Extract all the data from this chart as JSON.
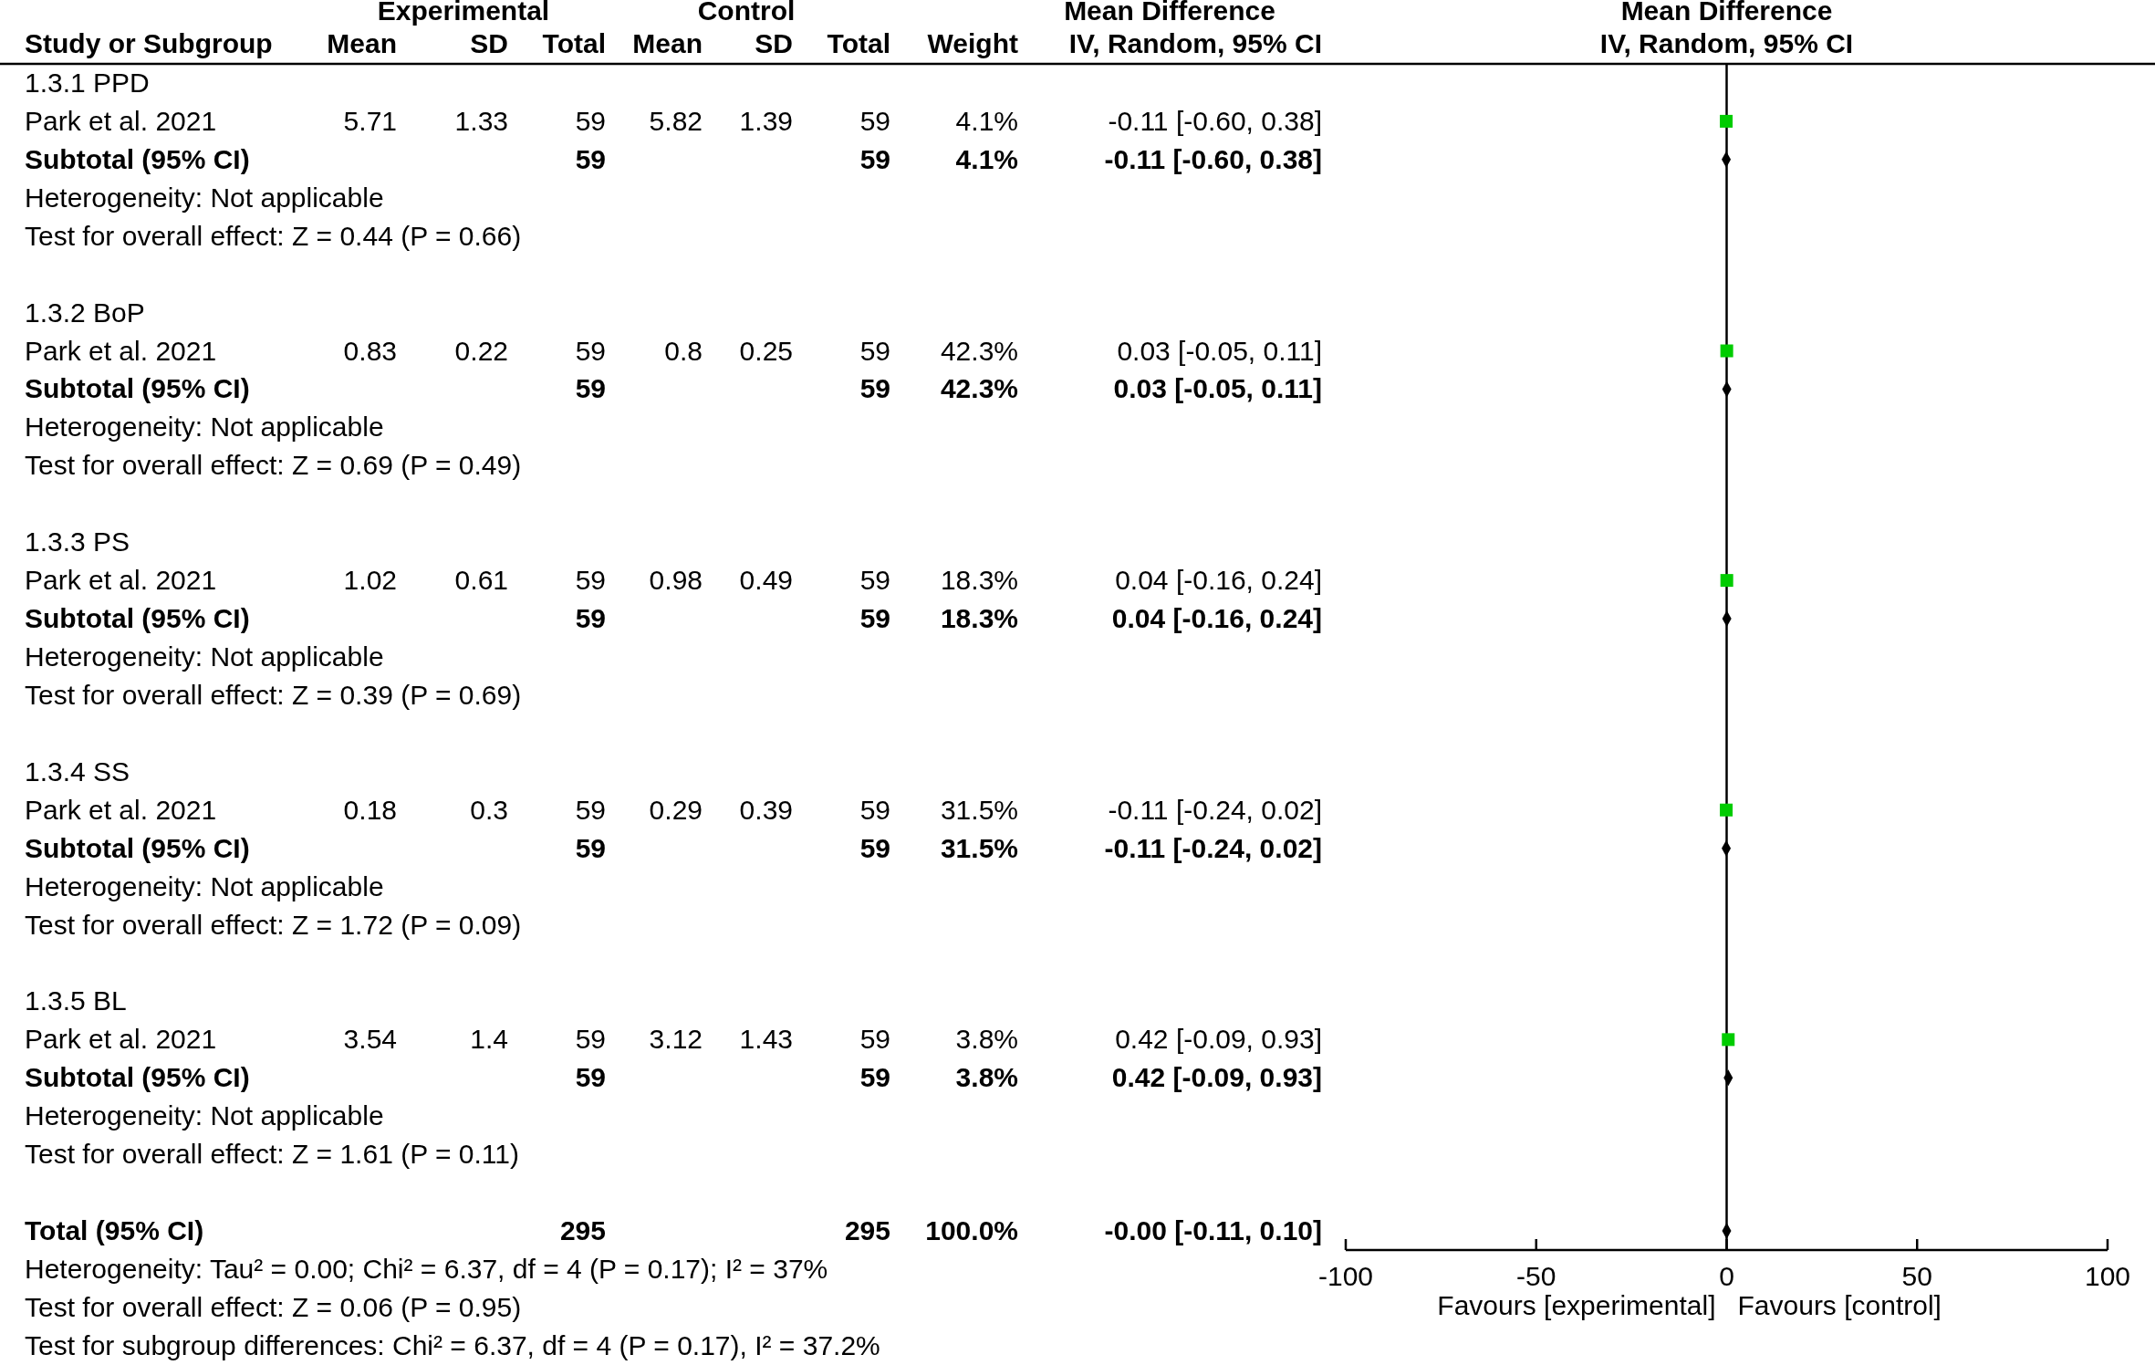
{
  "chart_data": [
    {
      "type": "other",
      "categories": [
        "Study or Subgroup",
        "Mean",
        "SD",
        "Total",
        "Mean",
        "SD",
        "Total",
        "Weight",
        "IV, Random, 95% CI"
      ],
      "cell_labels": [
        [
          null,
          null,
          "Experimental",
          null,
          null,
          "Control",
          null,
          null,
          "Mean Difference"
        ],
        [
          "1.3.1 PPD",
          null,
          null,
          null,
          null,
          null,
          null,
          null,
          null
        ],
        [
          "Park et al. 2021",
          "5.71",
          "1.33",
          "59",
          "5.82",
          "1.39",
          "59",
          "4.1%",
          "-0.11 [-0.60, 0.38]"
        ],
        [
          "Subtotal (95% CI)",
          null,
          null,
          "59",
          null,
          null,
          "59",
          "4.1%",
          "-0.11 [-0.60, 0.38]"
        ],
        [
          "Heterogeneity: Not applicable",
          null,
          null,
          null,
          null,
          null,
          null,
          null,
          null
        ],
        [
          "Test for overall effect: Z = 0.44 (P = 0.66)",
          null,
          null,
          null,
          null,
          null,
          null,
          null,
          null
        ],
        [
          null,
          null,
          null,
          null,
          null,
          null,
          null,
          null,
          null
        ],
        [
          "1.3.2 BoP",
          null,
          null,
          null,
          null,
          null,
          null,
          null,
          null
        ],
        [
          "Park et al. 2021",
          "0.83",
          "0.22",
          "59",
          "0.8",
          "0.25",
          "59",
          "42.3%",
          "0.03 [-0.05, 0.11]"
        ],
        [
          "Subtotal (95% CI)",
          null,
          null,
          "59",
          null,
          null,
          "59",
          "42.3%",
          "0.03 [-0.05, 0.11]"
        ],
        [
          "Heterogeneity: Not applicable",
          null,
          null,
          null,
          null,
          null,
          null,
          null,
          null
        ],
        [
          "Test for overall effect: Z = 0.69 (P = 0.49)",
          null,
          null,
          null,
          null,
          null,
          null,
          null,
          null
        ],
        [
          null,
          null,
          null,
          null,
          null,
          null,
          null,
          null,
          null
        ],
        [
          "1.3.3 PS",
          null,
          null,
          null,
          null,
          null,
          null,
          null,
          null
        ],
        [
          "Park et al. 2021",
          "1.02",
          "0.61",
          "59",
          "0.98",
          "0.49",
          "59",
          "18.3%",
          "0.04 [-0.16, 0.24]"
        ],
        [
          "Subtotal (95% CI)",
          null,
          null,
          "59",
          null,
          null,
          "59",
          "18.3%",
          "0.04 [-0.16, 0.24]"
        ],
        [
          "Heterogeneity: Not applicable",
          null,
          null,
          null,
          null,
          null,
          null,
          null,
          null
        ],
        [
          "Test for overall effect: Z = 0.39 (P = 0.69)",
          null,
          null,
          null,
          null,
          null,
          null,
          null,
          null
        ],
        [
          null,
          null,
          null,
          null,
          null,
          null,
          null,
          null,
          null
        ],
        [
          "1.3.4 SS",
          null,
          null,
          null,
          null,
          null,
          null,
          null,
          null
        ],
        [
          "Park et al. 2021",
          "0.18",
          "0.3",
          "59",
          "0.29",
          "0.39",
          "59",
          "31.5%",
          "-0.11 [-0.24, 0.02]"
        ],
        [
          "Subtotal (95% CI)",
          null,
          null,
          "59",
          null,
          null,
          "59",
          "31.5%",
          "-0.11 [-0.24, 0.02]"
        ],
        [
          "Heterogeneity: Not applicable",
          null,
          null,
          null,
          null,
          null,
          null,
          null,
          null
        ],
        [
          "Test for overall effect: Z = 1.72 (P = 0.09)",
          null,
          null,
          null,
          null,
          null,
          null,
          null,
          null
        ],
        [
          null,
          null,
          null,
          null,
          null,
          null,
          null,
          null,
          null
        ],
        [
          "1.3.5 BL",
          null,
          null,
          null,
          null,
          null,
          null,
          null,
          null
        ],
        [
          "Park et al. 2021",
          "3.54",
          "1.4",
          "59",
          "3.12",
          "1.43",
          "59",
          "3.8%",
          "0.42 [-0.09, 0.93]"
        ],
        [
          "Subtotal (95% CI)",
          null,
          null,
          "59",
          null,
          null,
          "59",
          "3.8%",
          "0.42 [-0.09, 0.93]"
        ],
        [
          "Heterogeneity: Not applicable",
          null,
          null,
          null,
          null,
          null,
          null,
          null,
          null
        ],
        [
          "Test for overall effect: Z = 1.61 (P = 0.11)",
          null,
          null,
          null,
          null,
          null,
          null,
          null,
          null
        ],
        [
          null,
          null,
          null,
          null,
          null,
          null,
          null,
          null,
          null
        ],
        [
          "Total (95% CI)",
          null,
          null,
          "295",
          null,
          null,
          "295",
          "100.0%",
          "-0.00 [-0.11, 0.10]"
        ],
        [
          "Heterogeneity: Tau² = 0.00; Chi² = 6.37, df = 4 (P = 0.17); I² = 37%",
          null,
          null,
          null,
          null,
          null,
          null,
          null,
          null
        ],
        [
          "Test for overall effect: Z = 0.06 (P = 0.95)",
          null,
          null,
          null,
          null,
          null,
          null,
          null,
          null
        ],
        [
          "Test for subgroup differences: Chi² = 6.37, df = 4 (P = 0.17), I² = 37.2%",
          null,
          null,
          null,
          null,
          null,
          null,
          null,
          null
        ]
      ]
    },
    {
      "type": "scatter",
      "orientation": "horizontal",
      "title": "Mean Difference",
      "subtitle": "IV, Random, 95% CI",
      "categories": [
        null,
        null,
        null,
        null,
        null,
        null,
        null,
        null,
        null,
        null,
        null,
        null,
        null,
        null,
        null,
        null,
        null,
        null,
        null,
        null,
        null,
        null,
        null,
        null,
        null,
        null,
        null,
        null,
        null,
        null,
        null
      ],
      "series": [
        {
          "marker": "square",
          "color": "#00cc00",
          "values": [
            null,
            -0.11,
            null,
            null,
            null,
            null,
            null,
            0.03,
            null,
            null,
            null,
            null,
            null,
            0.04,
            null,
            null,
            null,
            null,
            null,
            -0.11,
            null,
            null,
            null,
            null,
            null,
            0.42,
            null,
            null,
            null,
            null,
            null
          ]
        },
        {
          "marker": "diamond",
          "color": "#000000",
          "values": [
            null,
            null,
            -0.11,
            null,
            null,
            null,
            null,
            null,
            0.03,
            null,
            null,
            null,
            null,
            null,
            0.04,
            null,
            null,
            null,
            null,
            null,
            -0.11,
            null,
            null,
            null,
            null,
            null,
            0.42,
            null,
            null,
            null,
            0
          ]
        }
      ],
      "xlim": [
        -100,
        100
      ],
      "xticks": [
        -100,
        -50,
        0,
        50,
        100
      ],
      "ref_lines": [
        {
          "axis": "x",
          "value": 0,
          "color": "#000000"
        }
      ],
      "annotations": [
        "Favours [experimental]",
        "Favours [control]"
      ],
      "tick_labels": "x"
    }
  ]
}
